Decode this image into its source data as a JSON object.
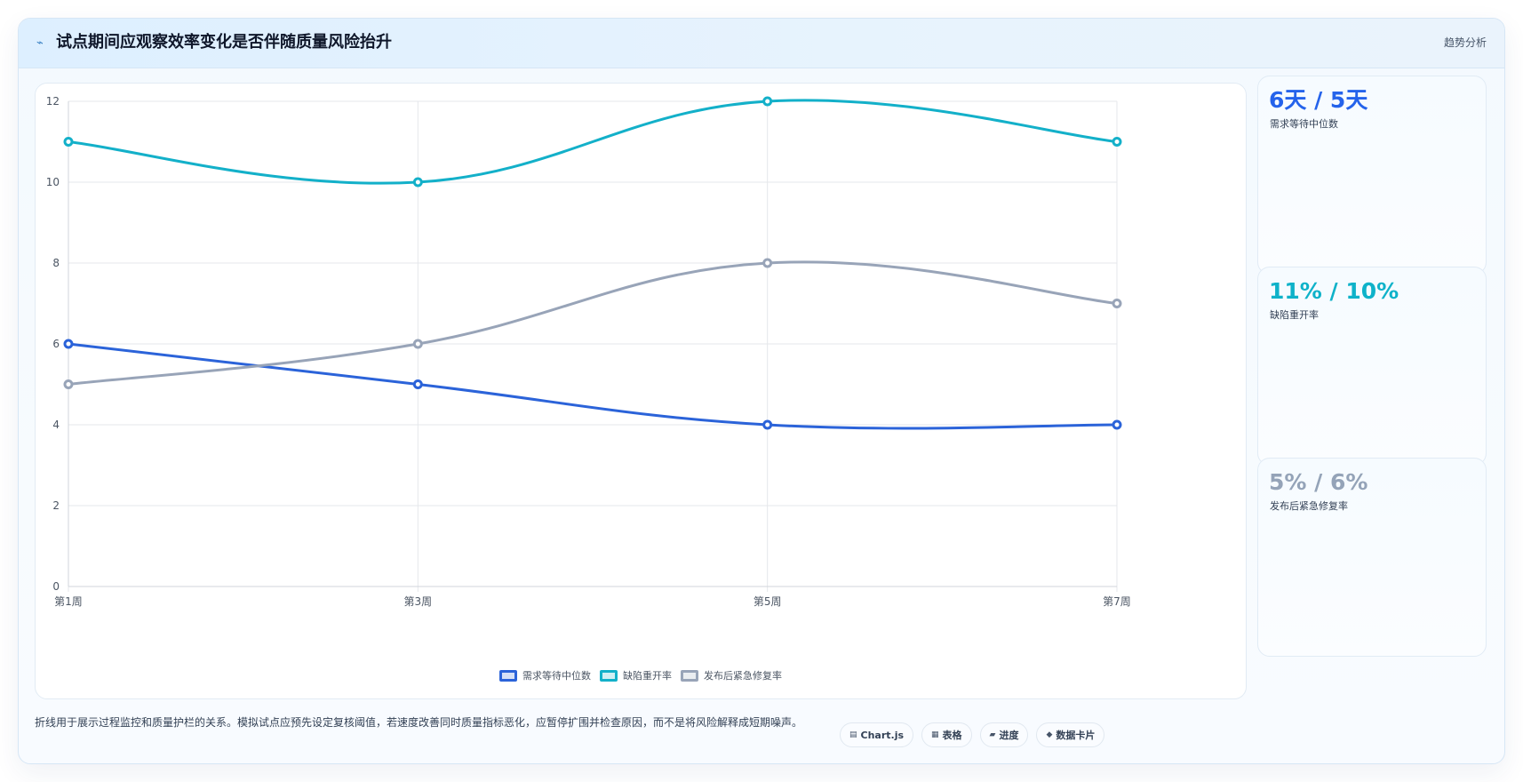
{
  "header": {
    "icon": "chart-trend-icon",
    "title": "试点期间应观察效率变化是否伴随质量风险抬升",
    "tag": "趋势分析"
  },
  "chart_data": {
    "type": "line",
    "categories": [
      "第1周",
      "第3周",
      "第5周",
      "第7周"
    ],
    "ylim": [
      0,
      12
    ],
    "yticks": [
      0,
      2,
      4,
      6,
      8,
      10,
      12
    ],
    "grid": true,
    "legend_position": "bottom",
    "series": [
      {
        "name": "需求等待中位数",
        "values": [
          6,
          5,
          4,
          4
        ],
        "color": "#2b63d9"
      },
      {
        "name": "缺陷重开率",
        "values": [
          11,
          10,
          12,
          11
        ],
        "color": "#13b0c9"
      },
      {
        "name": "发布后紧急修复率",
        "values": [
          5,
          6,
          8,
          7
        ],
        "color": "#98a4b8"
      }
    ]
  },
  "kpis": [
    {
      "value": "6天 / 5天",
      "label": "需求等待中位数",
      "color": "#2563eb"
    },
    {
      "value": "11% / 10%",
      "label": "缺陷重开率",
      "color": "#0fb2c9"
    },
    {
      "value": "5% / 6%",
      "label": "发布后紧急修复率",
      "color": "#94a3b8"
    }
  ],
  "footer": {
    "note": "折线用于展示过程监控和质量护栏的关系。模拟试点应预先设定复核阈值，若速度改善同时质量指标恶化，应暂停扩围并检查原因，而不是将风险解释成短期噪声。",
    "chips": [
      {
        "icon": "chart-icon",
        "glyph": "▤",
        "label": "Chart.js"
      },
      {
        "icon": "table-icon",
        "glyph": "▦",
        "label": "表格"
      },
      {
        "icon": "progress-icon",
        "glyph": "▰",
        "label": "进度"
      },
      {
        "icon": "data-card-icon",
        "glyph": "◆",
        "label": "数据卡片"
      }
    ]
  }
}
